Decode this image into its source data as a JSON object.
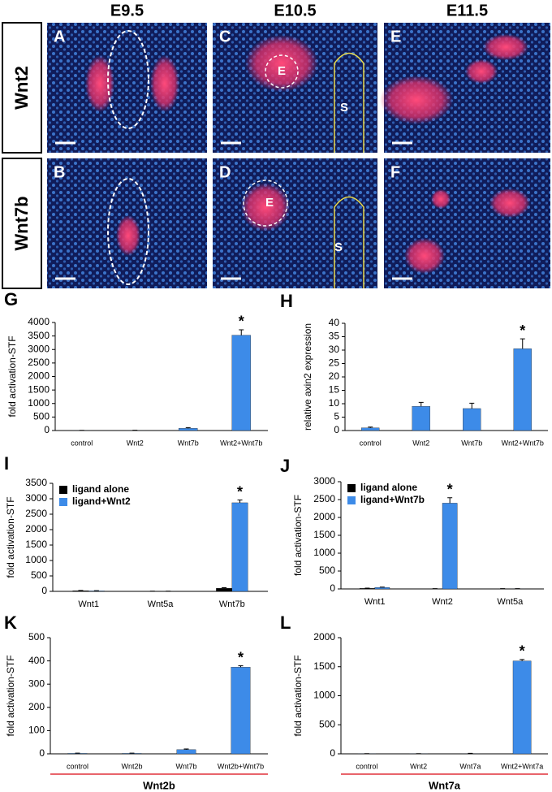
{
  "image_panels": {
    "columns": [
      "E9.5",
      "E10.5",
      "E11.5"
    ],
    "rows": [
      "Wnt2",
      "Wnt7b"
    ],
    "panels": [
      {
        "letter": "A"
      },
      {
        "letter": "C",
        "labels": [
          "E",
          "S"
        ]
      },
      {
        "letter": "E"
      },
      {
        "letter": "B"
      },
      {
        "letter": "D",
        "labels": [
          "E",
          "S"
        ]
      },
      {
        "letter": "F"
      }
    ]
  },
  "chart_data": [
    {
      "type": "bar",
      "label": "G",
      "ylabel": "fold activation-STF",
      "categories": [
        "control",
        "Wnt2",
        "Wnt7b",
        "Wnt2+Wnt7b"
      ],
      "series": [
        {
          "color": "#3d8be8",
          "values": [
            1,
            5,
            80,
            3530
          ],
          "errors": [
            5,
            5,
            30,
            200
          ]
        }
      ],
      "ylim": [
        0,
        4000
      ],
      "yticks": [
        0,
        500,
        1000,
        1500,
        2000,
        2500,
        3000,
        3500,
        4000
      ],
      "annotation": "*"
    },
    {
      "type": "bar",
      "label": "H",
      "ylabel": "relative axin2 expression",
      "categories": [
        "control",
        "Wnt2",
        "Wnt7b",
        "Wnt2+Wnt7b"
      ],
      "series": [
        {
          "color": "#3d8be8",
          "values": [
            1,
            9,
            8.2,
            30.5
          ],
          "errors": [
            0.3,
            1.5,
            2,
            3.7
          ]
        }
      ],
      "ylim": [
        0,
        40
      ],
      "yticks": [
        0,
        5,
        10,
        15,
        20,
        25,
        30,
        35,
        40
      ],
      "annotation": "*"
    },
    {
      "type": "bar",
      "label": "I",
      "ylabel": "fold activation-STF",
      "categories": [
        "Wnt1",
        "Wnt5a",
        "Wnt7b"
      ],
      "series": [
        {
          "name": "ligand alone",
          "color": "#000000",
          "values": [
            20,
            5,
            100
          ],
          "errors": [
            8,
            3,
            20
          ]
        },
        {
          "name": "ligand+Wnt2",
          "color": "#3d8be8",
          "values": [
            15,
            5,
            2870
          ],
          "errors": [
            8,
            3,
            90
          ]
        }
      ],
      "ylim": [
        0,
        3500
      ],
      "yticks": [
        0,
        500,
        1000,
        1500,
        2000,
        2500,
        3000,
        3500
      ],
      "annotation": "*"
    },
    {
      "type": "bar",
      "label": "J",
      "ylabel": "fold activation-STF",
      "categories": [
        "Wnt1",
        "Wnt2",
        "Wnt5a"
      ],
      "series": [
        {
          "name": "ligand alone",
          "color": "#000000",
          "values": [
            15,
            5,
            5
          ],
          "errors": [
            8,
            3,
            3
          ]
        },
        {
          "name": "ligand+Wnt7b",
          "color": "#3d8be8",
          "values": [
            40,
            2400,
            5
          ],
          "errors": [
            10,
            150,
            3
          ]
        }
      ],
      "ylim": [
        0,
        3000
      ],
      "yticks": [
        0,
        500,
        1000,
        1500,
        2000,
        2500,
        3000
      ],
      "annotation": "*"
    },
    {
      "type": "bar",
      "label": "K",
      "ylabel": "fold activation-STF",
      "xlabel": "Wnt2b",
      "categories": [
        "control",
        "Wnt2b",
        "Wnt7b",
        "Wnt2b+Wnt7b"
      ],
      "series": [
        {
          "color": "#3d8be8",
          "values": [
            2,
            2,
            18,
            373
          ],
          "errors": [
            1,
            1,
            3,
            6
          ]
        }
      ],
      "ylim": [
        0,
        500
      ],
      "yticks": [
        0,
        100,
        200,
        300,
        400,
        500
      ],
      "annotation": "*"
    },
    {
      "type": "bar",
      "label": "L",
      "ylabel": "fold activation-STF",
      "xlabel": "Wnt7a",
      "categories": [
        "control",
        "Wnt2",
        "Wnt7a",
        "Wnt2+Wnt7a"
      ],
      "series": [
        {
          "color": "#3d8be8",
          "values": [
            2,
            2,
            5,
            1600
          ],
          "errors": [
            1,
            1,
            3,
            25
          ]
        }
      ],
      "ylim": [
        0,
        2000
      ],
      "yticks": [
        0,
        500,
        1000,
        1500,
        2000
      ],
      "annotation": "*"
    }
  ]
}
